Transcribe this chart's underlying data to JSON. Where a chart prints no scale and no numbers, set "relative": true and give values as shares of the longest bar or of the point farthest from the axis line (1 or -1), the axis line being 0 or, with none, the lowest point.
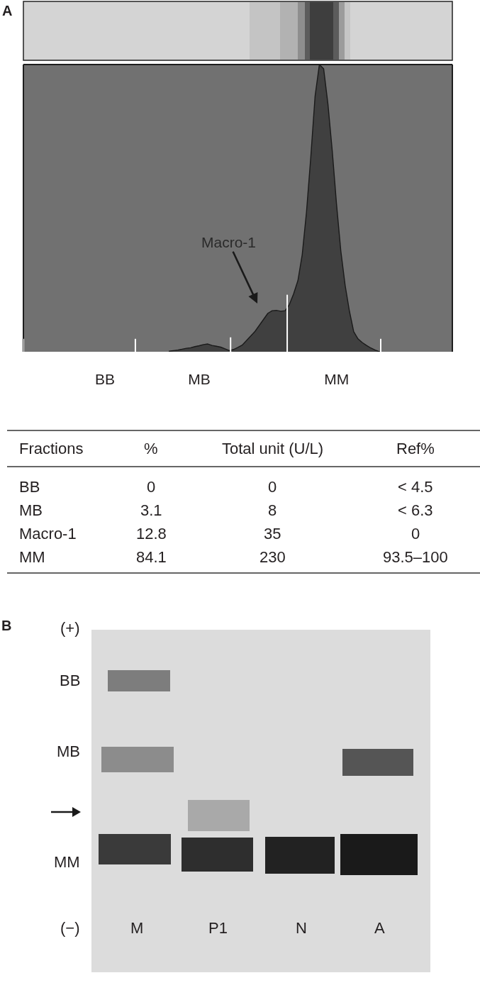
{
  "chart_data": [
    {
      "type": "area",
      "title": "A",
      "relative": true,
      "color": "#404040",
      "categories": [
        null,
        null,
        null,
        null,
        null,
        null,
        null,
        null,
        null,
        null,
        null,
        null,
        null,
        null,
        null,
        null,
        null,
        null,
        null,
        "BB",
        null,
        null,
        null,
        null,
        null,
        null,
        null,
        null,
        null,
        null,
        null,
        null,
        null,
        null,
        null,
        null,
        null,
        null,
        null,
        null,
        null,
        "MB",
        null,
        null,
        null,
        null,
        null,
        null,
        null,
        null,
        null,
        null,
        null,
        null,
        null,
        null,
        null,
        null,
        null,
        null,
        null,
        null,
        null,
        null,
        null,
        null,
        null,
        null,
        null,
        null,
        null,
        null,
        null,
        "MM",
        null,
        null,
        null,
        null,
        null,
        null,
        null,
        null,
        null,
        null,
        null,
        null,
        null,
        null,
        null,
        null,
        null,
        null,
        null,
        null,
        null,
        null,
        null,
        null,
        null,
        null,
        null
      ],
      "values": [
        null,
        null,
        null,
        null,
        null,
        null,
        null,
        null,
        null,
        null,
        null,
        null,
        null,
        null,
        null,
        null,
        null,
        null,
        null,
        null,
        null,
        null,
        null,
        null,
        null,
        null,
        null,
        null,
        null,
        null,
        null,
        null,
        null,
        null,
        0.002,
        0.004,
        0.006,
        0.009,
        0.012,
        0.014,
        0.018,
        0.021,
        0.025,
        0.027,
        0.022,
        0.019,
        0.016,
        0.01,
        0.004,
        0.008,
        0.015,
        0.023,
        0.039,
        0.055,
        0.071,
        0.092,
        0.113,
        0.134,
        0.143,
        0.144,
        0.141,
        0.143,
        0.164,
        0.202,
        0.248,
        0.338,
        0.487,
        0.678,
        0.89,
        1.0,
        0.985,
        0.862,
        0.7,
        0.514,
        0.351,
        0.232,
        0.142,
        0.07,
        0.045,
        0.032,
        0.022,
        0.013,
        0.006,
        0,
        null,
        null,
        null,
        null,
        null,
        null,
        null,
        null,
        null,
        null,
        null,
        null,
        null,
        null,
        null,
        null,
        null
      ],
      "annotations": [
        "Macro-1"
      ]
    },
    {
      "type": "other",
      "annotations": [
        "Fractions",
        "%",
        "Total unit (U/L)",
        "Ref%",
        "BB",
        "0",
        "0",
        "< 4.5",
        "MB",
        "3.1",
        "8",
        "< 6.3",
        "Macro-1",
        "12.8",
        "35",
        "0",
        "MM",
        "84.1",
        "230",
        "93.5–100"
      ]
    },
    {
      "type": "other",
      "title": "B",
      "annotations": [
        "(+)",
        "BB",
        "MB",
        "MM",
        "(−)",
        "M",
        "P1",
        "N",
        "A"
      ]
    }
  ]
}
